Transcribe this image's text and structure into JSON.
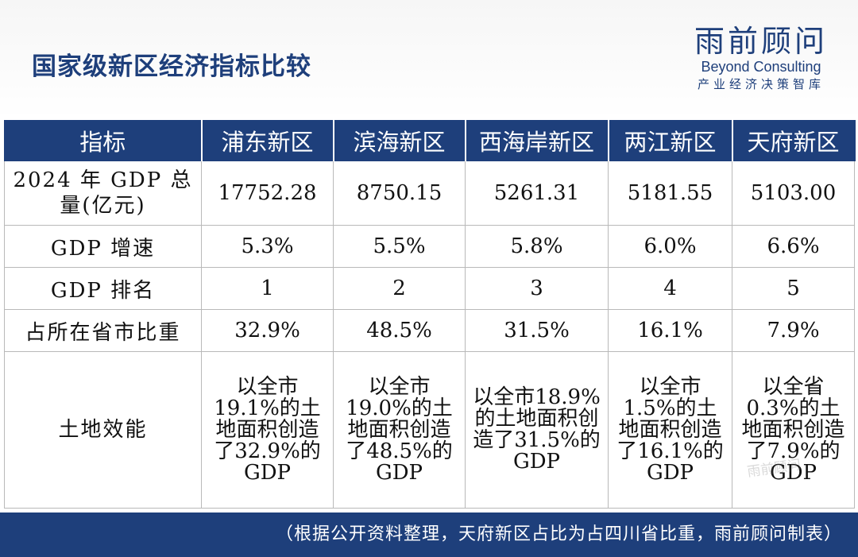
{
  "header": {
    "title": "国家级新区经济指标比较",
    "brand_cn": "雨前顾问",
    "brand_en": "Beyond Consulting",
    "brand_sub": "产业经济决策智库"
  },
  "table": {
    "columns": [
      "指标",
      "浦东新区",
      "滨海新区",
      "西海岸新区",
      "两江新区",
      "天府新区"
    ],
    "rows": [
      {
        "label": "2024 年 GDP 总量(亿元)",
        "values": [
          "17752.28",
          "8750.15",
          "5261.31",
          "5181.55",
          "5103.00"
        ]
      },
      {
        "label": "GDP 增速",
        "values": [
          "5.3%",
          "5.5%",
          "5.8%",
          "6.0%",
          "6.6%"
        ]
      },
      {
        "label": "GDP 排名",
        "values": [
          "1",
          "2",
          "3",
          "4",
          "5"
        ]
      },
      {
        "label": "占所在省市比重",
        "values": [
          "32.9%",
          "48.5%",
          "31.5%",
          "16.1%",
          "7.9%"
        ]
      },
      {
        "label": "土地效能",
        "values": [
          "以全市19.1%的土地面积创造了32.9%的GDP",
          "以全市19.0%的土地面积创造了48.5%的GDP",
          "以全市18.9%的土地面积创造了31.5%的GDP",
          "以全市1.5%的土地面积创造了16.1%的GDP",
          "以全省0.3%的土地面积创造了7.9%的GDP"
        ]
      }
    ]
  },
  "footer": {
    "note": "（根据公开资料整理，天府新区占比为占四川省比重，雨前顾问制表）"
  },
  "watermark": "雨前顾问",
  "colors": {
    "brand_navy": "#1e3f7b"
  }
}
